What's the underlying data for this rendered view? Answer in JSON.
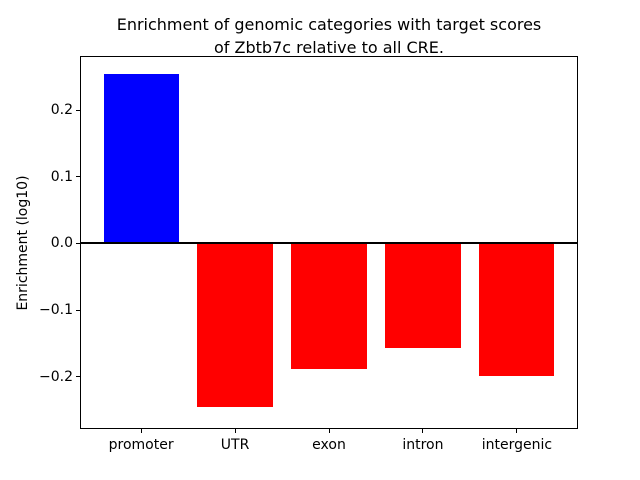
{
  "figure": {
    "title_lines": [
      "Enrichment of genomic categories with target scores",
      "of Zbtb7c relative to all CRE."
    ]
  },
  "chart_data": {
    "type": "bar",
    "title": "Enrichment of genomic categories with target scores of Zbtb7c relative to all CRE.",
    "categories": [
      "promoter",
      "UTR",
      "exon",
      "intron",
      "intergenic"
    ],
    "values": [
      0.254,
      -0.246,
      -0.188,
      -0.157,
      -0.199
    ],
    "bar_colors": [
      "#0000ff",
      "#ff0000",
      "#ff0000",
      "#ff0000",
      "#ff0000"
    ],
    "positive_color": "#0000ff",
    "negative_color": "#ff0000",
    "xlabel": "",
    "ylabel": "Enrichment (log10)",
    "ylim": [
      -0.277,
      0.28
    ],
    "yticks": [
      0.2,
      0.1,
      0.0,
      -0.1,
      -0.2
    ],
    "ytick_labels": [
      "0.2",
      "0.1",
      "0.0",
      "−0.1",
      "−0.2"
    ],
    "bar_relative_width": 0.8,
    "grid": false,
    "legend": "none",
    "zero_line": true,
    "background": "#ffffff"
  }
}
